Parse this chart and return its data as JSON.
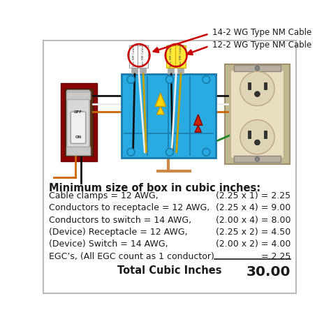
{
  "bg_color": "#ffffff",
  "border_color": "#cccccc",
  "title": "Minimum size of box in cubic inches:",
  "rows": [
    {
      "left": "Cable clamps = 12 AWG,",
      "right": "(2.25 x 1) = 2.25"
    },
    {
      "left": "Conductors to receptacle = 12 AWG,",
      "right": "(2.25 x 4) = 9.00"
    },
    {
      "left": "Conductors to switch = 14 AWG,",
      "right": "(2.00 x 4) = 8.00"
    },
    {
      "left": "(Device) Receptacle = 12 AWG,",
      "right": "(2.25 x 2) = 4.50"
    },
    {
      "left": "(Device) Switch = 14 AWG,",
      "right": "(2.00 x 2) = 4.00"
    },
    {
      "left": "EGC’s, (All EGC count as 1 conductor)",
      "right": "= 2.25"
    }
  ],
  "total_label": "Total Cubic Inches",
  "total_value": "30.00",
  "cable_label_1": "14-2 WG Type NM Cable",
  "cable_label_2": "12-2 WG Type NM Cable",
  "text_color": "#1a1a1a",
  "title_fontsize": 10.5,
  "row_fontsize": 9.0,
  "total_fontsize": 10.5,
  "box_color": "#29ABE2",
  "box_edge": "#1a7aad",
  "red_box_color": "#cc2200",
  "switch_body_color": "#e8e8e8",
  "receptacle_color": "#e8dfc0",
  "wire_nut_yellow": "#FFD700",
  "wire_nut_red": "#cc2200",
  "cable_white_label": "#ffffff",
  "cable_yellow_label": "#FFE838",
  "arrow_color": "#cc0000"
}
